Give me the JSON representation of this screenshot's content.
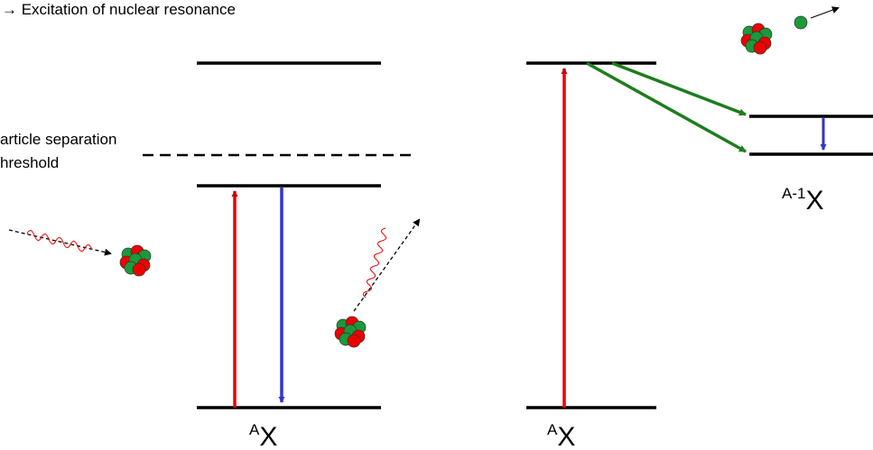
{
  "header": {
    "title": "→ Excitation of nuclear resonance"
  },
  "threshold": {
    "line1": "article separation",
    "line2": "hreshold"
  },
  "labels": {
    "left": {
      "sup": "A",
      "main": "X"
    },
    "middle": {
      "sup": "A",
      "main": "X"
    },
    "right": {
      "sup": "A-1",
      "main": "X"
    }
  }
}
